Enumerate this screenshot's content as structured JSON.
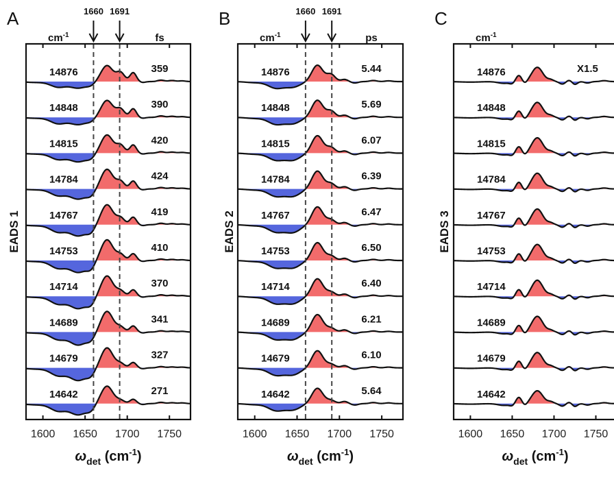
{
  "chart_data": {
    "type": "line",
    "description_units": {
      "x_unit_label": "cm-1"
    },
    "x_axis": {
      "label": "ω_det (cm⁻¹)",
      "label_symbol": "ω",
      "label_subscript": "det",
      "label_unit": "(cm",
      "label_unit_sup": "-1",
      "label_unit_close": ")",
      "xlim": [
        1580,
        1775
      ],
      "ticks": [
        1600,
        1650,
        1700,
        1750
      ],
      "tick_labels": [
        "1600",
        "1650",
        "1700",
        "1750"
      ]
    },
    "vertical_markers": {
      "values": [
        1660,
        1691
      ],
      "labels": [
        "1660",
        "1691"
      ],
      "arrow_panels": [
        "A",
        "B"
      ]
    },
    "fill_colors": {
      "positive": "#f26b6b",
      "negative": "#5566dd",
      "line": "#111111"
    },
    "row_labels": [
      "14876",
      "14848",
      "14815",
      "14784",
      "14767",
      "14753",
      "14714",
      "14689",
      "14679",
      "14642"
    ],
    "row_label_unit": "cm-1",
    "panels": [
      {
        "panel_letter": "A",
        "ylabel": "EADS 1",
        "header_left": "cm",
        "header_left_sup": "-1",
        "header_right": "fs",
        "scale_note": "",
        "lifetimes": [
          "359",
          "390",
          "420",
          "424",
          "419",
          "410",
          "370",
          "341",
          "327",
          "271"
        ],
        "components": [
          {
            "c": 1592,
            "w": 12,
            "a": [
              -0.05,
              -0.05,
              -0.05,
              -0.05,
              -0.06,
              -0.06,
              -0.06,
              -0.06,
              -0.07,
              -0.07
            ]
          },
          {
            "c": 1618,
            "w": 9,
            "a": [
              -0.3,
              -0.34,
              -0.34,
              -0.36,
              -0.4,
              -0.42,
              -0.42,
              -0.4,
              -0.42,
              -0.4
            ]
          },
          {
            "c": 1642,
            "w": 10,
            "a": [
              -0.36,
              -0.4,
              -0.48,
              -0.56,
              -0.62,
              -0.66,
              -0.68,
              -0.72,
              -0.7,
              -0.62
            ]
          },
          {
            "c": 1657,
            "w": 5,
            "a": [
              -0.14,
              -0.14,
              -0.2,
              -0.26,
              -0.3,
              -0.34,
              -0.34,
              -0.3,
              -0.3,
              -0.26
            ]
          },
          {
            "c": 1676,
            "w": 7,
            "a": [
              0.9,
              0.95,
              1.02,
              1.1,
              1.12,
              1.16,
              1.14,
              1.16,
              1.12,
              0.98
            ]
          },
          {
            "c": 1692,
            "w": 4.8,
            "a": [
              0.5,
              0.46,
              0.44,
              0.42,
              0.38,
              0.34,
              0.3,
              0.28,
              0.24,
              0.18
            ]
          },
          {
            "c": 1707,
            "w": 3.8,
            "a": [
              0.5,
              0.48,
              0.46,
              0.44,
              0.42,
              0.38,
              0.36,
              0.34,
              0.3,
              0.24
            ]
          },
          {
            "c": 1718,
            "w": 3.5,
            "a": [
              -0.05,
              -0.05,
              -0.05,
              -0.05,
              -0.05,
              -0.05,
              -0.05,
              -0.05,
              -0.05,
              -0.05
            ]
          },
          {
            "c": 1740,
            "w": 4,
            "a": [
              0.08,
              0.08,
              0.08,
              0.08,
              0.08,
              0.08,
              0.08,
              0.07,
              0.07,
              0.07
            ]
          },
          {
            "c": 1753,
            "w": 4,
            "a": [
              0.06,
              0.06,
              0.06,
              0.06,
              0.06,
              0.06,
              0.06,
              0.05,
              0.05,
              0.05
            ]
          },
          {
            "c": 1765,
            "w": 4,
            "a": [
              0.04,
              0.04,
              0.04,
              0.04,
              0.04,
              0.04,
              0.04,
              0.04,
              0.04,
              0.04
            ]
          }
        ]
      },
      {
        "panel_letter": "B",
        "ylabel": "EADS 2",
        "header_left": "cm",
        "header_left_sup": "-1",
        "header_right": "ps",
        "scale_note": "",
        "lifetimes": [
          "5.44",
          "5.69",
          "6.07",
          "6.39",
          "6.47",
          "6.50",
          "6.40",
          "6.21",
          "6.10",
          "5.64"
        ],
        "components": [
          {
            "c": 1600,
            "w": 10,
            "a": [
              -0.06,
              -0.06,
              -0.06,
              -0.06,
              -0.06,
              -0.06,
              -0.06,
              -0.06,
              -0.06,
              -0.06
            ]
          },
          {
            "c": 1625,
            "w": 9,
            "a": [
              -0.36,
              -0.38,
              -0.38,
              -0.4,
              -0.4,
              -0.4,
              -0.4,
              -0.4,
              -0.4,
              -0.38
            ]
          },
          {
            "c": 1645,
            "w": 9,
            "a": [
              -0.3,
              -0.34,
              -0.38,
              -0.4,
              -0.42,
              -0.4,
              -0.4,
              -0.4,
              -0.38,
              -0.34
            ]
          },
          {
            "c": 1674,
            "w": 6.5,
            "a": [
              0.92,
              0.96,
              0.98,
              1.0,
              1.0,
              1.0,
              0.98,
              0.98,
              0.96,
              0.86
            ]
          },
          {
            "c": 1690,
            "w": 5,
            "a": [
              0.4,
              0.36,
              0.32,
              0.3,
              0.28,
              0.26,
              0.24,
              0.22,
              0.2,
              0.18
            ]
          },
          {
            "c": 1706,
            "w": 4,
            "a": [
              0.12,
              0.12,
              0.12,
              0.12,
              0.12,
              0.12,
              0.12,
              0.12,
              0.12,
              0.12
            ]
          },
          {
            "c": 1718,
            "w": 4,
            "a": [
              -0.08,
              -0.08,
              -0.08,
              -0.08,
              -0.08,
              -0.08,
              -0.08,
              -0.08,
              -0.08,
              -0.08
            ]
          },
          {
            "c": 1740,
            "w": 4,
            "a": [
              0.06,
              0.06,
              0.06,
              0.06,
              0.06,
              0.06,
              0.06,
              0.06,
              0.06,
              0.06
            ]
          },
          {
            "c": 1758,
            "w": 4,
            "a": [
              0.04,
              0.04,
              0.04,
              0.04,
              0.04,
              0.04,
              0.04,
              0.04,
              0.04,
              0.04
            ]
          }
        ]
      },
      {
        "panel_letter": "C",
        "ylabel": "EADS 3",
        "header_left": "cm",
        "header_left_sup": "-1",
        "header_right": "",
        "scale_note": "X1.5",
        "lifetimes": [],
        "components": [
          {
            "c": 1600,
            "w": 12,
            "a": [
              -0.03,
              -0.03,
              -0.03,
              -0.03,
              -0.03,
              -0.03,
              -0.03,
              -0.03,
              -0.03,
              -0.03
            ]
          },
          {
            "c": 1640,
            "w": 7,
            "a": [
              -0.1,
              -0.1,
              -0.1,
              -0.1,
              -0.1,
              -0.1,
              -0.1,
              -0.1,
              -0.1,
              -0.1
            ]
          },
          {
            "c": 1650,
            "w": 3,
            "a": [
              -0.1,
              -0.1,
              -0.1,
              -0.1,
              -0.1,
              -0.1,
              -0.1,
              -0.1,
              -0.1,
              -0.1
            ]
          },
          {
            "c": 1658,
            "w": 3.5,
            "a": [
              0.35,
              0.36,
              0.37,
              0.38,
              0.38,
              0.38,
              0.38,
              0.38,
              0.38,
              0.36
            ]
          },
          {
            "c": 1665,
            "w": 3,
            "a": [
              -0.14,
              -0.14,
              -0.14,
              -0.14,
              -0.14,
              -0.14,
              -0.14,
              -0.14,
              -0.14,
              -0.14
            ]
          },
          {
            "c": 1680,
            "w": 6.5,
            "a": [
              0.8,
              0.84,
              0.86,
              0.88,
              0.88,
              0.9,
              0.9,
              0.88,
              0.86,
              0.72
            ]
          },
          {
            "c": 1696,
            "w": 3.5,
            "a": [
              0.1,
              0.1,
              0.1,
              0.1,
              0.1,
              0.1,
              0.1,
              0.1,
              0.1,
              0.1
            ]
          },
          {
            "c": 1710,
            "w": 3.5,
            "a": [
              -0.14,
              -0.14,
              -0.14,
              -0.14,
              -0.14,
              -0.14,
              -0.14,
              -0.14,
              -0.14,
              -0.14
            ]
          },
          {
            "c": 1718,
            "w": 3,
            "a": [
              0.08,
              0.08,
              0.08,
              0.08,
              0.08,
              0.08,
              0.08,
              0.08,
              0.08,
              0.08
            ]
          },
          {
            "c": 1725,
            "w": 3,
            "a": [
              -0.16,
              -0.16,
              -0.16,
              -0.16,
              -0.16,
              -0.16,
              -0.16,
              -0.16,
              -0.16,
              -0.16
            ]
          },
          {
            "c": 1740,
            "w": 3.5,
            "a": [
              -0.08,
              -0.08,
              -0.08,
              -0.08,
              -0.08,
              -0.08,
              -0.08,
              -0.08,
              -0.08,
              -0.08
            ]
          },
          {
            "c": 1760,
            "w": 4,
            "a": [
              0.05,
              0.05,
              0.05,
              0.05,
              0.05,
              0.05,
              0.05,
              0.05,
              0.05,
              0.05
            ]
          }
        ]
      }
    ]
  }
}
